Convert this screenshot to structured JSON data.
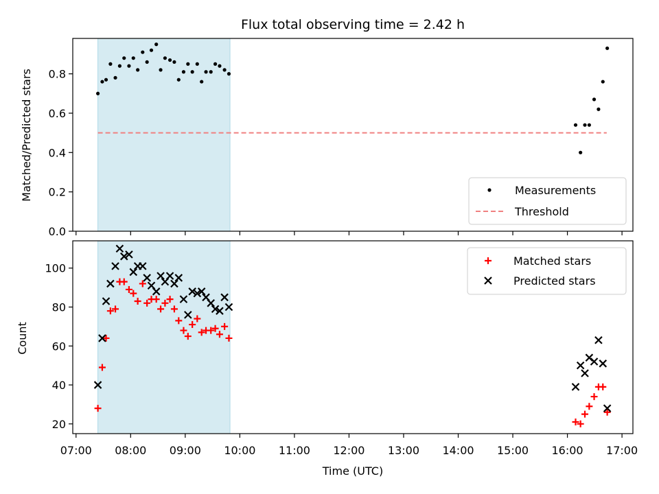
{
  "title": "Flux total observing time = 2.42 h",
  "x_ticks": [
    "07:00",
    "08:00",
    "09:00",
    "10:00",
    "11:00",
    "12:00",
    "13:00",
    "14:00",
    "15:00",
    "16:00",
    "17:00"
  ],
  "xlabel": "Time (UTC)",
  "colors": {
    "shade": "#add8e6",
    "threshold": "#f08080",
    "matched": "#ff0000",
    "predicted": "#000000",
    "measurement": "#000000"
  },
  "chart_data": [
    {
      "type": "scatter",
      "ylabel": "Matched/Predicted stars",
      "xlim": [
        6.94,
        17.2
      ],
      "ylim": [
        0.0,
        0.98
      ],
      "y_ticks": [
        "0.0",
        "0.2",
        "0.4",
        "0.6",
        "0.8"
      ],
      "y_tick_values": [
        0.0,
        0.2,
        0.4,
        0.6,
        0.8
      ],
      "shaded_interval": [
        7.4,
        9.82
      ],
      "legend": {
        "position": "lower right",
        "entries": [
          "Measurements",
          "Threshold"
        ]
      },
      "threshold": {
        "name": "Threshold",
        "value": 0.5,
        "x_range": [
          7.4,
          16.72
        ]
      },
      "series": [
        {
          "name": "Measurements",
          "x": [
            7.4,
            7.48,
            7.55,
            7.63,
            7.72,
            7.8,
            7.88,
            7.97,
            8.05,
            8.13,
            8.22,
            8.3,
            8.38,
            8.47,
            8.55,
            8.63,
            8.72,
            8.8,
            8.88,
            8.97,
            9.05,
            9.13,
            9.22,
            9.3,
            9.38,
            9.47,
            9.55,
            9.63,
            9.72,
            9.8,
            16.15,
            16.24,
            16.32,
            16.4,
            16.49,
            16.57,
            16.65,
            16.73
          ],
          "y": [
            0.7,
            0.76,
            0.77,
            0.85,
            0.78,
            0.84,
            0.88,
            0.84,
            0.88,
            0.82,
            0.91,
            0.86,
            0.92,
            0.95,
            0.82,
            0.88,
            0.87,
            0.86,
            0.77,
            0.81,
            0.85,
            0.81,
            0.85,
            0.76,
            0.81,
            0.81,
            0.85,
            0.84,
            0.82,
            0.8,
            0.54,
            0.4,
            0.54,
            0.54,
            0.67,
            0.62,
            0.76,
            0.93
          ]
        }
      ]
    },
    {
      "type": "scatter",
      "ylabel": "Count",
      "xlim": [
        6.94,
        17.2
      ],
      "ylim": [
        15,
        114
      ],
      "y_ticks": [
        "20",
        "40",
        "60",
        "80",
        "100"
      ],
      "y_tick_values": [
        20,
        40,
        60,
        80,
        100
      ],
      "shaded_interval": [
        7.4,
        9.82
      ],
      "legend": {
        "position": "upper right",
        "entries": [
          "Matched stars",
          "Predicted stars"
        ]
      },
      "series": [
        {
          "name": "Matched stars",
          "marker": "+",
          "x": [
            7.4,
            7.48,
            7.55,
            7.63,
            7.72,
            7.8,
            7.88,
            7.97,
            8.05,
            8.13,
            8.22,
            8.3,
            8.38,
            8.47,
            8.55,
            8.63,
            8.72,
            8.8,
            8.88,
            8.97,
            9.05,
            9.13,
            9.22,
            9.3,
            9.38,
            9.47,
            9.55,
            9.63,
            9.72,
            9.8,
            16.15,
            16.24,
            16.32,
            16.4,
            16.49,
            16.57,
            16.65,
            16.73
          ],
          "y": [
            28,
            49,
            64,
            78,
            79,
            93,
            93,
            89,
            87,
            83,
            92,
            82,
            84,
            84,
            79,
            82,
            84,
            79,
            73,
            68,
            65,
            71,
            74,
            67,
            68,
            68,
            69,
            66,
            70,
            64,
            21,
            20,
            25,
            29,
            34,
            39,
            39,
            26
          ]
        },
        {
          "name": "Predicted stars",
          "marker": "x",
          "x": [
            7.4,
            7.48,
            7.55,
            7.63,
            7.72,
            7.8,
            7.88,
            7.97,
            8.05,
            8.13,
            8.22,
            8.3,
            8.38,
            8.47,
            8.55,
            8.63,
            8.72,
            8.8,
            8.88,
            8.97,
            9.05,
            9.13,
            9.22,
            9.3,
            9.38,
            9.47,
            9.55,
            9.63,
            9.72,
            9.8,
            16.15,
            16.24,
            16.32,
            16.4,
            16.49,
            16.57,
            16.65,
            16.73
          ],
          "y": [
            40,
            64,
            83,
            92,
            101,
            110,
            106,
            107,
            98,
            101,
            101,
            95,
            91,
            88,
            96,
            93,
            96,
            92,
            95,
            84,
            76,
            88,
            87,
            88,
            85,
            82,
            79,
            78,
            85,
            80,
            39,
            50,
            46,
            54,
            52,
            63,
            51,
            28
          ]
        }
      ]
    }
  ]
}
